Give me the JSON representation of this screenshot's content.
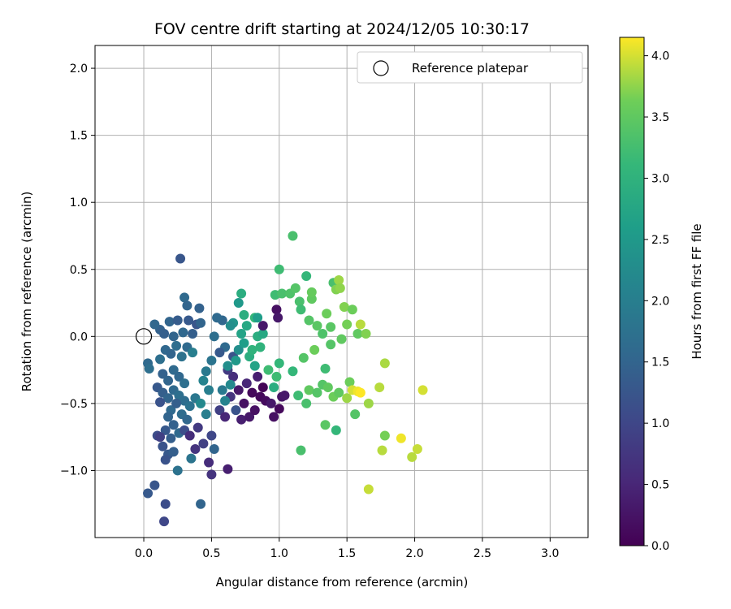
{
  "chart_data": {
    "type": "scatter",
    "title": "FOV centre drift starting at 2024/12/05 10:30:17",
    "xlabel": "Angular distance from reference (arcmin)",
    "ylabel": "Rotation from reference (arcmin)",
    "xlim": [
      -0.36,
      3.28
    ],
    "ylim": [
      -1.5,
      2.17
    ],
    "xticks": [
      "0.0",
      "0.5",
      "1.0",
      "1.5",
      "2.0",
      "2.5",
      "3.0"
    ],
    "yticks": [
      "−1.0",
      "−0.5",
      "0.0",
      "0.5",
      "1.0",
      "1.5",
      "2.0"
    ],
    "grid": true,
    "legend": {
      "position": "top-right",
      "entries": [
        "Reference platepar"
      ]
    },
    "colorbar": {
      "label": "Hours from first FF file",
      "min": 0.0,
      "max": 4.15,
      "colormap": "viridis",
      "ticks": [
        "0.0",
        "0.5",
        "1.0",
        "1.5",
        "2.0",
        "2.5",
        "3.0",
        "3.5",
        "4.0"
      ]
    },
    "reference_point": {
      "x": 0.0,
      "y": 0.0
    },
    "series": [
      {
        "marker": "filled circle",
        "points": [
          [
            0.27,
            0.58,
            1.25
          ],
          [
            0.3,
            0.29,
            1.6
          ],
          [
            0.32,
            0.23,
            1.5
          ],
          [
            0.41,
            0.21,
            1.45
          ],
          [
            0.12,
            0.05,
            1.45
          ],
          [
            0.08,
            0.09,
            1.55
          ],
          [
            0.15,
            0.02,
            1.4
          ],
          [
            0.19,
            0.11,
            1.5
          ],
          [
            0.25,
            0.12,
            1.35
          ],
          [
            0.33,
            0.12,
            1.3
          ],
          [
            0.39,
            0.09,
            1.25
          ],
          [
            0.42,
            0.1,
            1.5
          ],
          [
            0.22,
            0.0,
            1.5
          ],
          [
            0.29,
            0.03,
            1.55
          ],
          [
            0.36,
            0.02,
            1.4
          ],
          [
            0.03,
            -0.2,
            1.6
          ],
          [
            0.04,
            -0.24,
            1.7
          ],
          [
            0.12,
            -0.17,
            1.7
          ],
          [
            0.16,
            -0.1,
            1.55
          ],
          [
            0.2,
            -0.13,
            1.5
          ],
          [
            0.24,
            -0.07,
            1.65
          ],
          [
            0.28,
            -0.15,
            1.75
          ],
          [
            0.32,
            -0.08,
            1.6
          ],
          [
            0.36,
            -0.12,
            2.0
          ],
          [
            0.14,
            -0.28,
            1.45
          ],
          [
            0.18,
            -0.33,
            1.5
          ],
          [
            0.22,
            -0.25,
            1.6
          ],
          [
            0.26,
            -0.3,
            1.55
          ],
          [
            0.3,
            -0.35,
            1.7
          ],
          [
            0.1,
            -0.38,
            1.3
          ],
          [
            0.14,
            -0.42,
            1.4
          ],
          [
            0.18,
            -0.46,
            1.5
          ],
          [
            0.22,
            -0.4,
            1.6
          ],
          [
            0.26,
            -0.44,
            1.7
          ],
          [
            0.3,
            -0.48,
            1.65
          ],
          [
            0.34,
            -0.52,
            1.75
          ],
          [
            0.38,
            -0.46,
            1.85
          ],
          [
            0.12,
            -0.49,
            1.2
          ],
          [
            0.2,
            -0.55,
            1.6
          ],
          [
            0.24,
            -0.5,
            1.4
          ],
          [
            0.28,
            -0.58,
            1.65
          ],
          [
            0.32,
            -0.62,
            1.55
          ],
          [
            0.18,
            -0.6,
            1.5
          ],
          [
            0.22,
            -0.66,
            1.45
          ],
          [
            0.26,
            -0.72,
            1.6
          ],
          [
            0.16,
            -0.7,
            1.3
          ],
          [
            0.2,
            -0.76,
            1.4
          ],
          [
            0.1,
            -0.74,
            1.1
          ],
          [
            0.14,
            -0.82,
            1.2
          ],
          [
            0.18,
            -0.88,
            1.3
          ],
          [
            0.22,
            -0.86,
            1.4
          ],
          [
            0.16,
            -0.92,
            1.2
          ],
          [
            0.12,
            -0.75,
            0.9
          ],
          [
            0.3,
            -0.7,
            1.1
          ],
          [
            0.34,
            -0.74,
            0.6
          ],
          [
            0.4,
            -0.68,
            0.8
          ],
          [
            0.38,
            -0.84,
            0.7
          ],
          [
            0.44,
            -0.8,
            0.9
          ],
          [
            0.5,
            -0.74,
            1.0
          ],
          [
            0.48,
            -0.94,
            0.6
          ],
          [
            0.52,
            -0.84,
            1.5
          ],
          [
            0.35,
            -0.91,
            1.8
          ],
          [
            0.25,
            -1.0,
            1.75
          ],
          [
            0.16,
            -1.25,
            1.1
          ],
          [
            0.15,
            -1.38,
            1.0
          ],
          [
            0.03,
            -1.17,
            1.3
          ],
          [
            0.08,
            -1.11,
            1.25
          ],
          [
            0.42,
            -1.25,
            1.5
          ],
          [
            0.5,
            -1.03,
            0.7
          ],
          [
            0.62,
            -0.99,
            0.4
          ],
          [
            0.56,
            -0.55,
            0.9
          ],
          [
            0.6,
            -0.6,
            0.5
          ],
          [
            0.64,
            -0.45,
            0.7
          ],
          [
            0.66,
            -0.3,
            0.6
          ],
          [
            0.7,
            -0.4,
            0.3
          ],
          [
            0.68,
            -0.55,
            1.2
          ],
          [
            0.72,
            -0.62,
            0.4
          ],
          [
            0.74,
            -0.5,
            0.2
          ],
          [
            0.76,
            -0.35,
            0.5
          ],
          [
            0.78,
            -0.6,
            0.3
          ],
          [
            0.8,
            -0.42,
            0.1
          ],
          [
            0.82,
            -0.55,
            0.2
          ],
          [
            0.84,
            -0.3,
            0.4
          ],
          [
            0.86,
            -0.45,
            0.1
          ],
          [
            0.88,
            -0.38,
            0.05
          ],
          [
            0.9,
            -0.48,
            0.15
          ],
          [
            0.62,
            -0.25,
            0.8
          ],
          [
            0.66,
            -0.15,
            1.2
          ],
          [
            0.6,
            -0.08,
            1.6
          ],
          [
            0.56,
            -0.12,
            1.3
          ],
          [
            0.58,
            0.12,
            1.55
          ],
          [
            0.54,
            0.14,
            1.6
          ],
          [
            0.52,
            0.0,
            1.7
          ],
          [
            0.5,
            -0.18,
            1.8
          ],
          [
            0.46,
            -0.26,
            1.9
          ],
          [
            0.44,
            -0.33,
            2.1
          ],
          [
            0.48,
            -0.4,
            2.0
          ],
          [
            0.42,
            -0.5,
            2.2
          ],
          [
            0.46,
            -0.58,
            2.0
          ],
          [
            0.58,
            -0.4,
            1.9
          ],
          [
            0.6,
            -0.48,
            2.1
          ],
          [
            0.64,
            -0.36,
            2.2
          ],
          [
            0.62,
            -0.22,
            2.3
          ],
          [
            0.68,
            -0.18,
            2.5
          ],
          [
            0.7,
            -0.1,
            2.3
          ],
          [
            0.72,
            0.02,
            2.7
          ],
          [
            0.74,
            -0.05,
            2.6
          ],
          [
            0.76,
            0.08,
            2.8
          ],
          [
            0.78,
            -0.15,
            2.9
          ],
          [
            0.8,
            -0.1,
            3.0
          ],
          [
            0.82,
            -0.22,
            2.7
          ],
          [
            0.84,
            0.0,
            2.9
          ],
          [
            0.86,
            -0.08,
            3.0
          ],
          [
            0.66,
            0.1,
            2.4
          ],
          [
            0.7,
            0.25,
            2.5
          ],
          [
            0.64,
            0.08,
            2.3
          ],
          [
            0.72,
            0.32,
            2.9
          ],
          [
            0.74,
            0.16,
            2.9
          ],
          [
            0.82,
            0.14,
            3.1
          ],
          [
            0.88,
            0.02,
            2.8
          ],
          [
            0.92,
            -0.25,
            3.2
          ],
          [
            0.96,
            -0.38,
            2.9
          ],
          [
            0.98,
            -0.3,
            3.2
          ],
          [
            1.0,
            -0.2,
            3.1
          ],
          [
            0.94,
            -0.5,
            0.3
          ],
          [
            0.96,
            -0.6,
            0.2
          ],
          [
            1.0,
            -0.54,
            0.1
          ],
          [
            1.02,
            -0.45,
            0.25
          ],
          [
            0.98,
            0.2,
            0.2
          ],
          [
            0.99,
            0.14,
            0.3
          ],
          [
            0.88,
            0.08,
            0.3
          ],
          [
            0.84,
            0.14,
            2.6
          ],
          [
            0.97,
            0.31,
            3.2
          ],
          [
            1.0,
            0.5,
            3.2
          ],
          [
            1.02,
            0.32,
            3.3
          ],
          [
            1.1,
            0.75,
            3.3
          ],
          [
            1.08,
            0.32,
            3.35
          ],
          [
            1.12,
            0.36,
            3.4
          ],
          [
            1.15,
            0.26,
            3.3
          ],
          [
            1.16,
            0.2,
            3.2
          ],
          [
            1.2,
            0.45,
            3.1
          ],
          [
            1.22,
            0.12,
            3.4
          ],
          [
            1.24,
            0.28,
            3.5
          ],
          [
            1.24,
            0.33,
            3.55
          ],
          [
            1.28,
            0.08,
            3.45
          ],
          [
            1.32,
            0.02,
            3.35
          ],
          [
            1.35,
            0.17,
            3.6
          ],
          [
            1.38,
            0.07,
            3.45
          ],
          [
            1.4,
            0.4,
            3.3
          ],
          [
            1.42,
            0.35,
            3.7
          ],
          [
            1.44,
            0.42,
            3.8
          ],
          [
            1.45,
            0.36,
            3.75
          ],
          [
            1.46,
            -0.02,
            3.5
          ],
          [
            1.48,
            0.22,
            3.7
          ],
          [
            1.5,
            0.09,
            3.65
          ],
          [
            1.54,
            0.2,
            3.6
          ],
          [
            1.56,
            -0.58,
            3.4
          ],
          [
            1.58,
            0.02,
            3.5
          ],
          [
            1.6,
            0.09,
            3.9
          ],
          [
            1.64,
            0.02,
            3.7
          ],
          [
            1.1,
            -0.26,
            3.1
          ],
          [
            1.14,
            -0.44,
            3.2
          ],
          [
            1.18,
            -0.16,
            3.4
          ],
          [
            1.2,
            -0.5,
            3.3
          ],
          [
            1.22,
            -0.4,
            3.5
          ],
          [
            1.26,
            -0.1,
            3.6
          ],
          [
            1.28,
            -0.42,
            3.4
          ],
          [
            1.32,
            -0.36,
            3.4
          ],
          [
            1.34,
            -0.24,
            3.2
          ],
          [
            1.36,
            -0.38,
            3.5
          ],
          [
            1.38,
            -0.06,
            3.4
          ],
          [
            1.4,
            -0.45,
            3.6
          ],
          [
            1.42,
            -0.7,
            3.1
          ],
          [
            1.44,
            -0.42,
            3.5
          ],
          [
            1.5,
            -0.46,
            3.8
          ],
          [
            1.52,
            -0.34,
            3.6
          ],
          [
            1.54,
            -0.4,
            4.0
          ],
          [
            1.58,
            -0.41,
            4.1
          ],
          [
            1.6,
            -0.42,
            4.15
          ],
          [
            1.66,
            -0.5,
            3.8
          ],
          [
            1.74,
            -0.38,
            3.9
          ],
          [
            1.78,
            -0.2,
            3.85
          ],
          [
            1.78,
            -0.74,
            3.65
          ],
          [
            1.76,
            -0.85,
            3.9
          ],
          [
            1.9,
            -0.76,
            4.1
          ],
          [
            1.98,
            -0.9,
            3.9
          ],
          [
            2.02,
            -0.84,
            3.95
          ],
          [
            2.06,
            -0.4,
            4.0
          ],
          [
            1.66,
            -1.14,
            3.95
          ],
          [
            1.16,
            -0.85,
            3.3
          ],
          [
            1.34,
            -0.66,
            3.45
          ],
          [
            1.04,
            -0.44,
            0.3
          ]
        ]
      }
    ]
  }
}
